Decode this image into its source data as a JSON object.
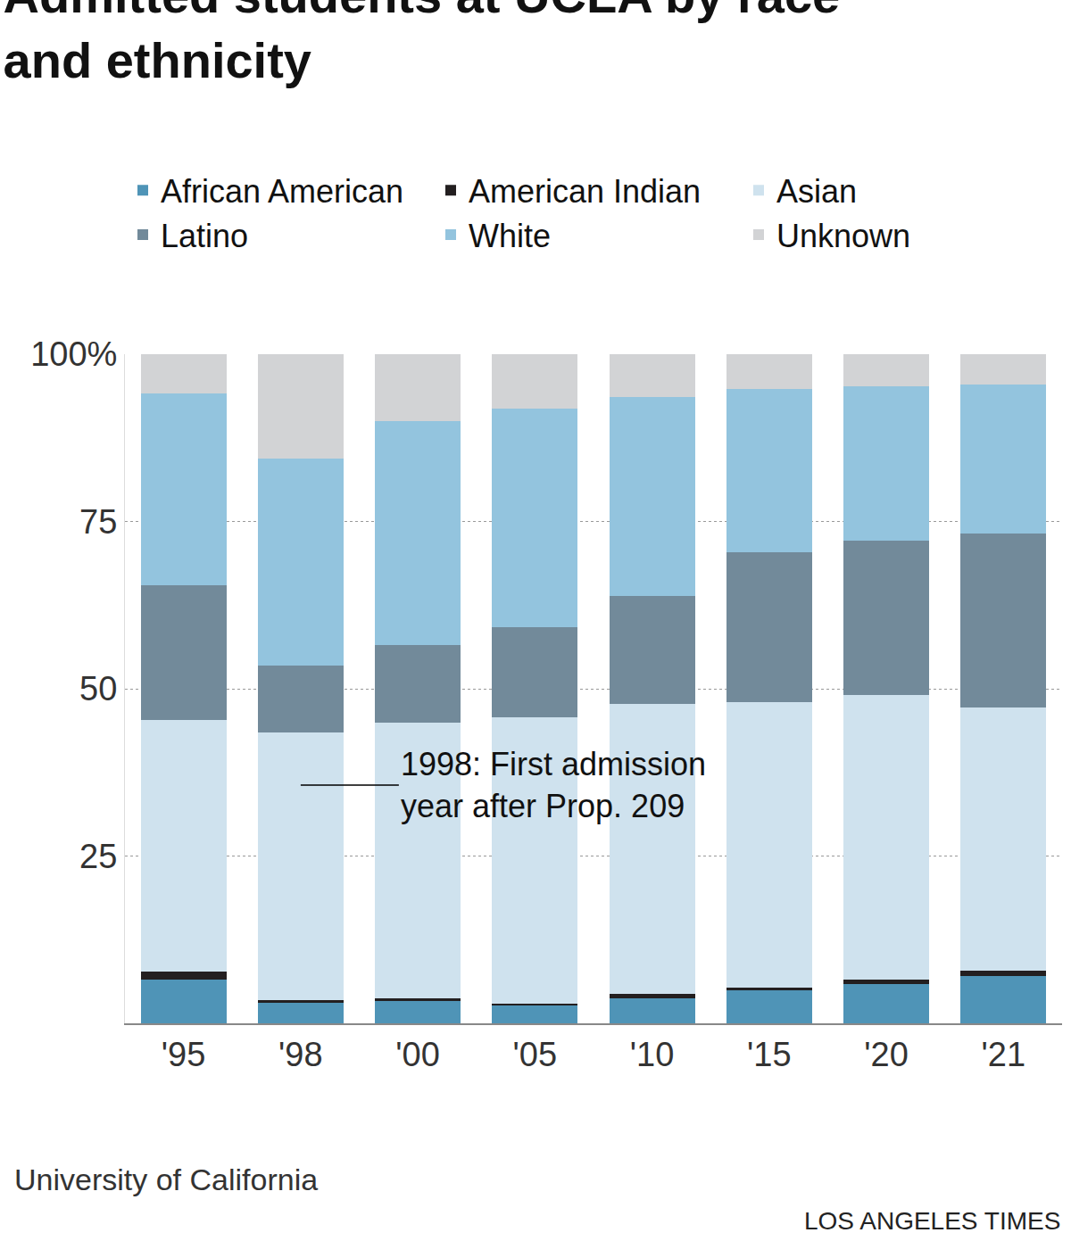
{
  "chart_data": {
    "type": "bar",
    "title": "Admitted students at UCLA by race and ethnicity",
    "categories": [
      "'95",
      "'98",
      "'00",
      "'05",
      "'10",
      "'15",
      "'20",
      "'21"
    ],
    "series": [
      {
        "name": "African American",
        "color": "#4f94b7",
        "values": [
          6.5,
          3.1,
          3.3,
          2.7,
          3.7,
          4.9,
          5.9,
          7.1
        ]
      },
      {
        "name": "American Indian",
        "color": "#231f20",
        "values": [
          1.2,
          0.4,
          0.4,
          0.2,
          0.7,
          0.4,
          0.6,
          0.8
        ]
      },
      {
        "name": "Asian",
        "color": "#cfe2ee",
        "values": [
          37.6,
          40.0,
          41.2,
          42.8,
          43.3,
          42.7,
          42.6,
          39.3
        ]
      },
      {
        "name": "Latino",
        "color": "#728a9a",
        "values": [
          20.2,
          10.0,
          11.6,
          13.5,
          16.2,
          22.4,
          23.0,
          26.0
        ]
      },
      {
        "name": "White",
        "color": "#93c4de",
        "values": [
          28.6,
          30.9,
          33.5,
          32.7,
          29.7,
          24.4,
          23.1,
          22.3
        ]
      },
      {
        "name": "Unknown",
        "color": "#d2d3d5",
        "values": [
          5.9,
          15.6,
          10.0,
          8.1,
          6.4,
          5.2,
          4.8,
          4.5
        ]
      }
    ],
    "stacked": true,
    "ylim": [
      0,
      100
    ],
    "yticks": [
      25,
      50,
      75,
      {
        "value": 100,
        "label": "100%"
      }
    ],
    "grid": true,
    "legend": "top left",
    "annotations": [
      {
        "text": "1998: First admission year after Prop. 209",
        "category": "'98",
        "y": 35.6
      }
    ],
    "source": "University of California",
    "credit": "LOS ANGELES TIMES"
  }
}
